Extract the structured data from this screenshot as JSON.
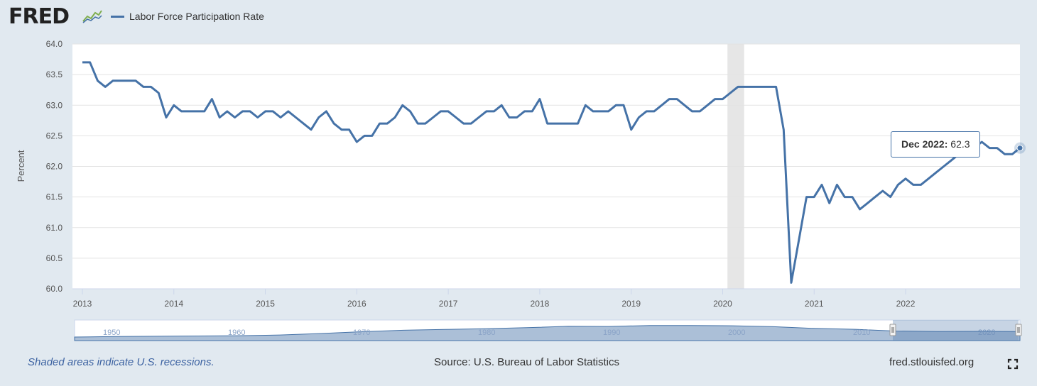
{
  "header": {
    "logo_text": "FRED",
    "logo_icon": "line-chart-icon",
    "series_label": "Labor Force Participation Rate",
    "series_color": "#4572a7"
  },
  "tooltip": {
    "date": "Dec 2022:",
    "value": "62.3"
  },
  "footer": {
    "recession_note": "Shaded areas indicate U.S. recessions.",
    "source": "Source: U.S. Bureau of Labor Statistics",
    "site": "fred.stlouisfed.org",
    "fullscreen_icon": "fullscreen-icon"
  },
  "navigator": {
    "labels": [
      "1950",
      "1960",
      "1970",
      "1980",
      "1990",
      "2000",
      "2010",
      "2020"
    ],
    "selected_range": [
      "2013-01",
      "2022-12"
    ]
  },
  "chart_data": {
    "type": "line",
    "title": "",
    "xlabel": "",
    "ylabel": "Percent",
    "ylim": [
      60.0,
      64.0
    ],
    "yticks": [
      "60.0",
      "60.5",
      "61.0",
      "61.5",
      "62.0",
      "62.5",
      "63.0",
      "63.5",
      "64.0"
    ],
    "xticks": [
      "2013",
      "2014",
      "2015",
      "2016",
      "2017",
      "2018",
      "2019",
      "2020",
      "2021",
      "2022"
    ],
    "x_start": "2013-01",
    "x_end": "2022-12",
    "grid": true,
    "recession": {
      "start": "2020-02",
      "end": "2020-04",
      "color": "#e6e6e6"
    },
    "series": [
      {
        "name": "Labor Force Participation Rate",
        "color": "#4572a7",
        "values": [
          63.7,
          63.7,
          63.4,
          63.3,
          63.4,
          63.4,
          63.4,
          63.4,
          63.3,
          63.3,
          63.2,
          62.8,
          63.0,
          62.9,
          62.9,
          62.9,
          62.9,
          63.1,
          62.8,
          62.9,
          62.8,
          62.9,
          62.9,
          62.8,
          62.9,
          62.9,
          62.8,
          62.9,
          62.8,
          62.7,
          62.6,
          62.8,
          62.9,
          62.7,
          62.6,
          62.6,
          62.4,
          62.5,
          62.5,
          62.7,
          62.7,
          62.8,
          63.0,
          62.9,
          62.7,
          62.7,
          62.8,
          62.9,
          62.9,
          62.8,
          62.7,
          62.7,
          62.8,
          62.9,
          62.9,
          63.0,
          62.8,
          62.8,
          62.9,
          62.9,
          63.1,
          62.7,
          62.7,
          62.7,
          62.7,
          62.7,
          63.0,
          62.9,
          62.9,
          62.9,
          63.0,
          63.0,
          62.6,
          62.8,
          62.9,
          62.9,
          63.0,
          63.1,
          63.1,
          63.0,
          62.9,
          62.9,
          63.0,
          63.1,
          63.1,
          63.2,
          63.3,
          63.3,
          63.3,
          63.3,
          63.3,
          63.3,
          62.6,
          60.1,
          60.8,
          61.5,
          61.5,
          61.7,
          61.4,
          61.7,
          61.5,
          61.5,
          61.3,
          61.4,
          61.5,
          61.6,
          61.5,
          61.7,
          61.8,
          61.7,
          61.7,
          61.8,
          61.9,
          62.0,
          62.1,
          62.2,
          62.2,
          62.3,
          62.4,
          62.3,
          62.3,
          62.2,
          62.2,
          62.3
        ]
      }
    ]
  }
}
